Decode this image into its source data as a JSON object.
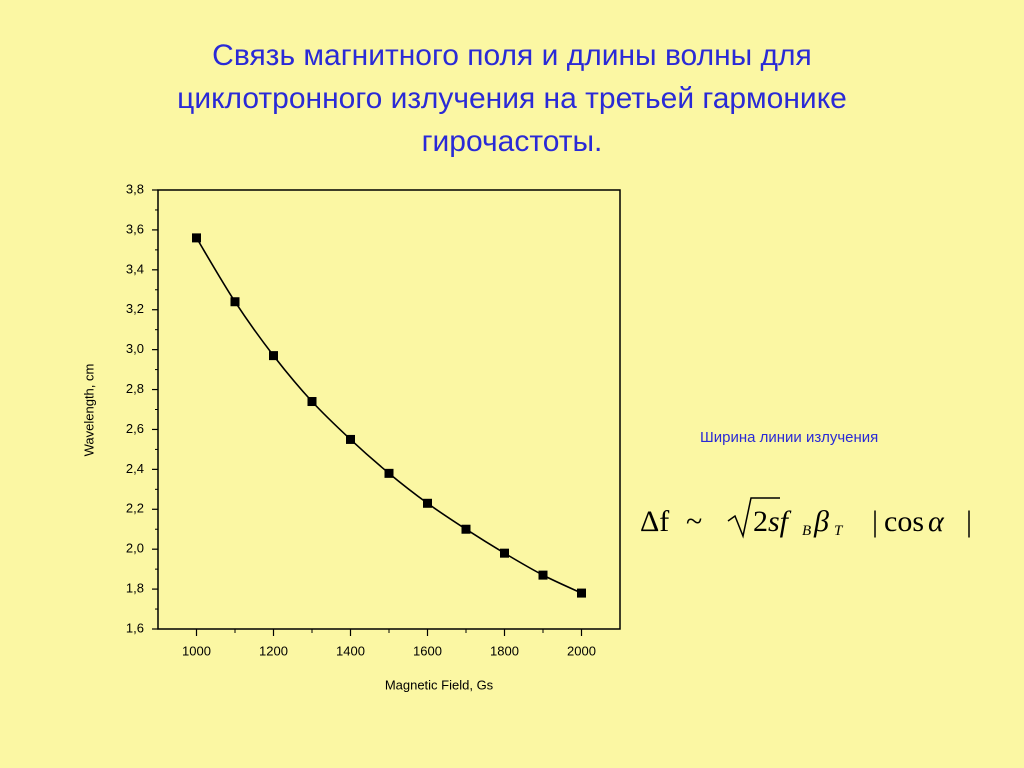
{
  "chart_data": {
    "type": "line",
    "title": "Связь магнитного поля и длины волны для циклотронного излучения на третьей гармонике гирочастоты.",
    "x_label": "Magnetic Field, Gs",
    "y_label": "Wavelength, cm",
    "x": [
      1000,
      1100,
      1200,
      1300,
      1400,
      1500,
      1600,
      1700,
      1800,
      1900,
      2000
    ],
    "values": [
      3.56,
      3.24,
      2.97,
      2.74,
      2.55,
      2.38,
      2.23,
      2.1,
      1.98,
      1.87,
      1.78
    ],
    "color": "#000000",
    "xlim": [
      900,
      2100
    ],
    "ylim": [
      1.6,
      3.8
    ],
    "xticks": [
      1000,
      1200,
      1400,
      1600,
      1800,
      2000
    ],
    "yticks": [
      {
        "value": 1.6,
        "label": "1,6"
      },
      {
        "value": 1.8,
        "label": "1,8"
      },
      {
        "value": 2.0,
        "label": "2,0"
      },
      {
        "value": 2.2,
        "label": "2,2"
      },
      {
        "value": 2.4,
        "label": "2,4"
      },
      {
        "value": 2.6,
        "label": "2,6"
      },
      {
        "value": 2.8,
        "label": "2,8"
      },
      {
        "value": 3.0,
        "label": "3,0"
      },
      {
        "value": 3.2,
        "label": "3,2"
      },
      {
        "value": 3.4,
        "label": "3,4"
      },
      {
        "value": 3.6,
        "label": "3,6"
      },
      {
        "value": 3.8,
        "label": "3,8"
      }
    ],
    "grid": false,
    "annotation": "Ширина линии излучения",
    "formula_parts": [
      "Δf",
      "~",
      "2",
      "sf",
      "B",
      "β",
      "T",
      "|",
      "cos",
      "α",
      "|"
    ]
  }
}
